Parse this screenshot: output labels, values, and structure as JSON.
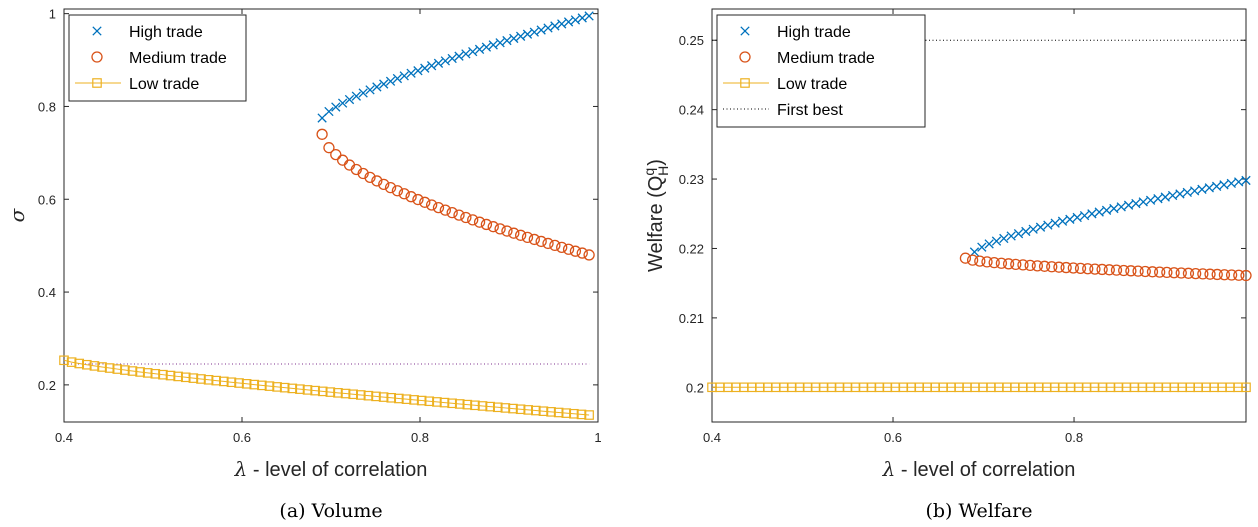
{
  "chart_data": [
    {
      "type": "line",
      "caption": "(a) Volume",
      "xlabel_symbol": "λ",
      "xlabel": " - level of correlation",
      "ylabel": "σ",
      "xlim": [
        0.4,
        1.0
      ],
      "ylim": [
        0.12,
        1.01
      ],
      "xticks": [
        0.4,
        0.6,
        0.8,
        1.0
      ],
      "xtick_labels": [
        "0.4",
        "0.6",
        "0.8",
        "1"
      ],
      "yticks": [
        0.2,
        0.4,
        0.6,
        0.8,
        1.0
      ],
      "ytick_labels": [
        "0.2",
        "0.4",
        "0.6",
        "0.8",
        "1"
      ],
      "legend_position": "top-left",
      "series": [
        {
          "name": "High trade",
          "marker": "x",
          "color": "#0072BD",
          "line": false,
          "x_start": 0.69,
          "x_end": 0.99,
          "n": 40,
          "y_start": 0.775,
          "y_end": 0.995,
          "curve": 0.75
        },
        {
          "name": "Medium trade",
          "marker": "o",
          "color": "#D95319",
          "line": false,
          "x_start": 0.69,
          "x_end": 0.99,
          "n": 40,
          "y_start": 0.74,
          "y_end": 0.48,
          "curve": 0.6
        },
        {
          "name": "Low trade",
          "marker": "s",
          "color": "#EDB120",
          "line": true,
          "x_start": 0.4,
          "x_end": 0.99,
          "n": 70,
          "y_start": 0.253,
          "y_end": 0.135,
          "curve": 0.8
        }
      ],
      "reference_line": {
        "y": 0.245,
        "x_start": 0.4,
        "x_end": 0.99,
        "color": "#7E2F8E"
      }
    },
    {
      "type": "line",
      "caption": "(b) Welfare",
      "xlabel_symbol": "λ",
      "xlabel": " - level of correlation",
      "ylabel": "Welfare (Q",
      "ylabel_sup": "q",
      "ylabel_sub": "H",
      "ylabel_end": ")",
      "xlim": [
        0.4,
        0.99
      ],
      "ylim": [
        0.195,
        0.2545
      ],
      "xticks": [
        0.4,
        0.6,
        0.8
      ],
      "xtick_labels": [
        "0.4",
        "0.6",
        "0.8"
      ],
      "yticks": [
        0.2,
        0.21,
        0.22,
        0.23,
        0.24,
        0.25
      ],
      "ytick_labels": [
        "0.2",
        "0.21",
        "0.22",
        "0.23",
        "0.24",
        "0.25"
      ],
      "legend_position": "top-left",
      "series": [
        {
          "name": "High trade",
          "marker": "x",
          "color": "#0072BD",
          "line": false,
          "x_start": 0.69,
          "x_end": 0.99,
          "n": 38,
          "y_start": 0.2195,
          "y_end": 0.2298,
          "curve": 0.75
        },
        {
          "name": "Medium trade",
          "marker": "o",
          "color": "#D95319",
          "line": false,
          "x_start": 0.68,
          "x_end": 0.99,
          "n": 40,
          "y_start": 0.2186,
          "y_end": 0.2161,
          "curve": 0.6
        },
        {
          "name": "Low trade",
          "marker": "s",
          "color": "#EDB120",
          "line": true,
          "x_start": 0.4,
          "x_end": 0.99,
          "n": 68,
          "y_start": 0.2,
          "y_end": 0.2,
          "curve": 1.0
        },
        {
          "name": "First best",
          "marker": "none",
          "color": "#000000",
          "line": true,
          "dotted": true,
          "x_start": 0.4,
          "x_end": 0.99,
          "n": 2,
          "y_start": 0.25,
          "y_end": 0.25,
          "curve": 1.0
        }
      ]
    }
  ]
}
